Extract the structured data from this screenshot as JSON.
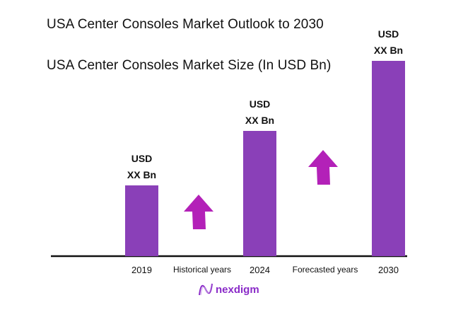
{
  "chart_data": {
    "type": "bar",
    "title": "USA Center Consoles Market Outlook to 2030",
    "subtitle": "USA Center Consoles Market Size (In USD Bn)",
    "categories": [
      "2019",
      "2024",
      "2030"
    ],
    "values": [
      1.0,
      1.77,
      2.76
    ],
    "value_note_labels": [
      "USD\nXX Bn",
      "USD\nXX Bn",
      "USD\nXX Bn"
    ],
    "data_labels": [
      [
        "USD",
        "XX Bn"
      ],
      [
        "USD",
        "XX Bn"
      ],
      [
        "USD",
        "XX Bn"
      ]
    ],
    "period_labels": [
      "Historical years",
      "Forecasted years"
    ],
    "grid": false,
    "legend": "none",
    "bar_color": "#8a40b8",
    "arrow_color": "#b321b8"
  },
  "brand": {
    "name": "nexdigm",
    "color": "#8a2bc8"
  }
}
